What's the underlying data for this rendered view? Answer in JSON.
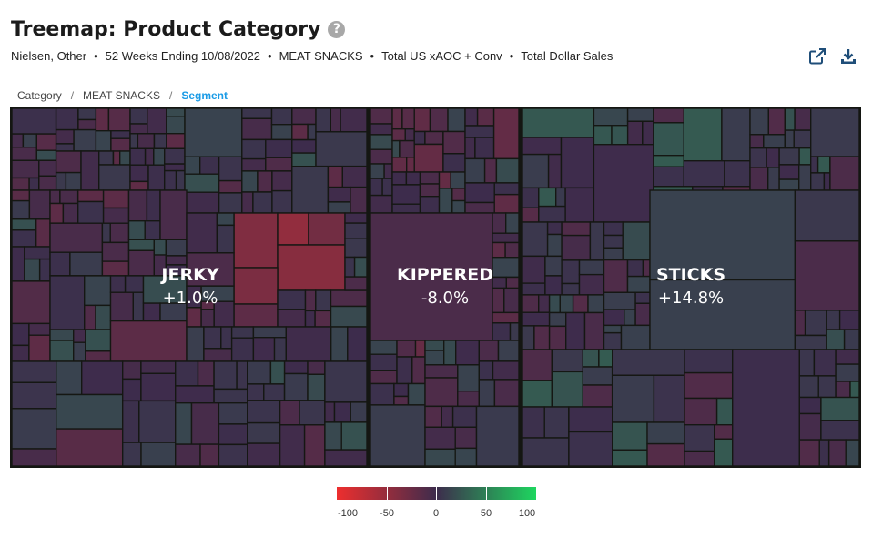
{
  "title": "Treemap: Product Category",
  "subtitle_parts": [
    "Nielsen, Other",
    "52 Weeks Ending 10/08/2022",
    "MEAT SNACKS",
    "Total US xAOC + Conv",
    "Total Dollar Sales"
  ],
  "subtitle_separator": "•",
  "help_glyph": "?",
  "breadcrumb": [
    "Category",
    "MEAT SNACKS",
    "Segment"
  ],
  "breadcrumb_separator": "/",
  "icons": {
    "export": "external-link-icon",
    "download": "download-icon",
    "help": "help-icon"
  },
  "chart_data": {
    "type": "treemap",
    "segments": [
      {
        "name": "JERKY",
        "change_label": "+1.0%",
        "change": 1.0
      },
      {
        "name": "KIPPERED",
        "change_label": "-8.0%",
        "change": -8.0
      },
      {
        "name": "STICKS",
        "change_label": "+14.8%",
        "change": 14.8
      }
    ],
    "color_scale": {
      "min": -100,
      "mid": 0,
      "max": 100,
      "colors": [
        "#ee2e2e",
        "#3d2c4c",
        "#1ed65f"
      ],
      "ticks": [
        "-100",
        "-50",
        "0",
        "50",
        "100"
      ],
      "tick_values": [
        -100,
        -50,
        0,
        50,
        100
      ]
    },
    "background_color": "#1b1d1a"
  }
}
